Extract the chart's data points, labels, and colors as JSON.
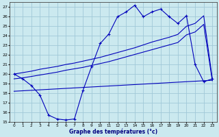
{
  "title": "Graphe des températures (°c)",
  "bg_color": "#cbe9ef",
  "grid_color": "#a0c8d8",
  "line_color": "#0000bb",
  "xlim": [
    -0.5,
    23.5
  ],
  "ylim": [
    15,
    27.5
  ],
  "yticks": [
    15,
    16,
    17,
    18,
    19,
    20,
    21,
    22,
    23,
    24,
    25,
    26,
    27
  ],
  "xticks": [
    0,
    1,
    2,
    3,
    4,
    5,
    6,
    7,
    8,
    9,
    10,
    11,
    12,
    13,
    14,
    15,
    16,
    17,
    18,
    19,
    20,
    21,
    22,
    23
  ],
  "temp_line": [
    20.0,
    19.5,
    18.8,
    17.8,
    15.7,
    15.3,
    15.2,
    15.3,
    18.3,
    20.8,
    23.2,
    24.2,
    26.0,
    26.5,
    27.2,
    26.0,
    26.5,
    26.8,
    26.0,
    25.3,
    26.1,
    21.0,
    19.2,
    19.5
  ],
  "trend_high": [
    20.0,
    20.15,
    20.3,
    20.5,
    20.65,
    20.8,
    21.0,
    21.15,
    21.35,
    21.55,
    21.75,
    22.0,
    22.25,
    22.5,
    22.75,
    23.05,
    23.35,
    23.6,
    23.85,
    24.15,
    25.0,
    25.3,
    26.1,
    19.5
  ],
  "trend_low": [
    19.5,
    19.6,
    19.75,
    19.9,
    20.05,
    20.2,
    20.4,
    20.55,
    20.7,
    20.9,
    21.1,
    21.3,
    21.55,
    21.8,
    22.05,
    22.3,
    22.55,
    22.8,
    23.05,
    23.3,
    24.1,
    24.4,
    25.2,
    19.3
  ],
  "flat_line": [
    18.2,
    18.25,
    18.3,
    18.35,
    18.4,
    18.45,
    18.5,
    18.55,
    18.6,
    18.65,
    18.7,
    18.75,
    18.8,
    18.85,
    18.9,
    18.95,
    19.0,
    19.05,
    19.1,
    19.15,
    19.2,
    19.25,
    19.3,
    19.35
  ]
}
